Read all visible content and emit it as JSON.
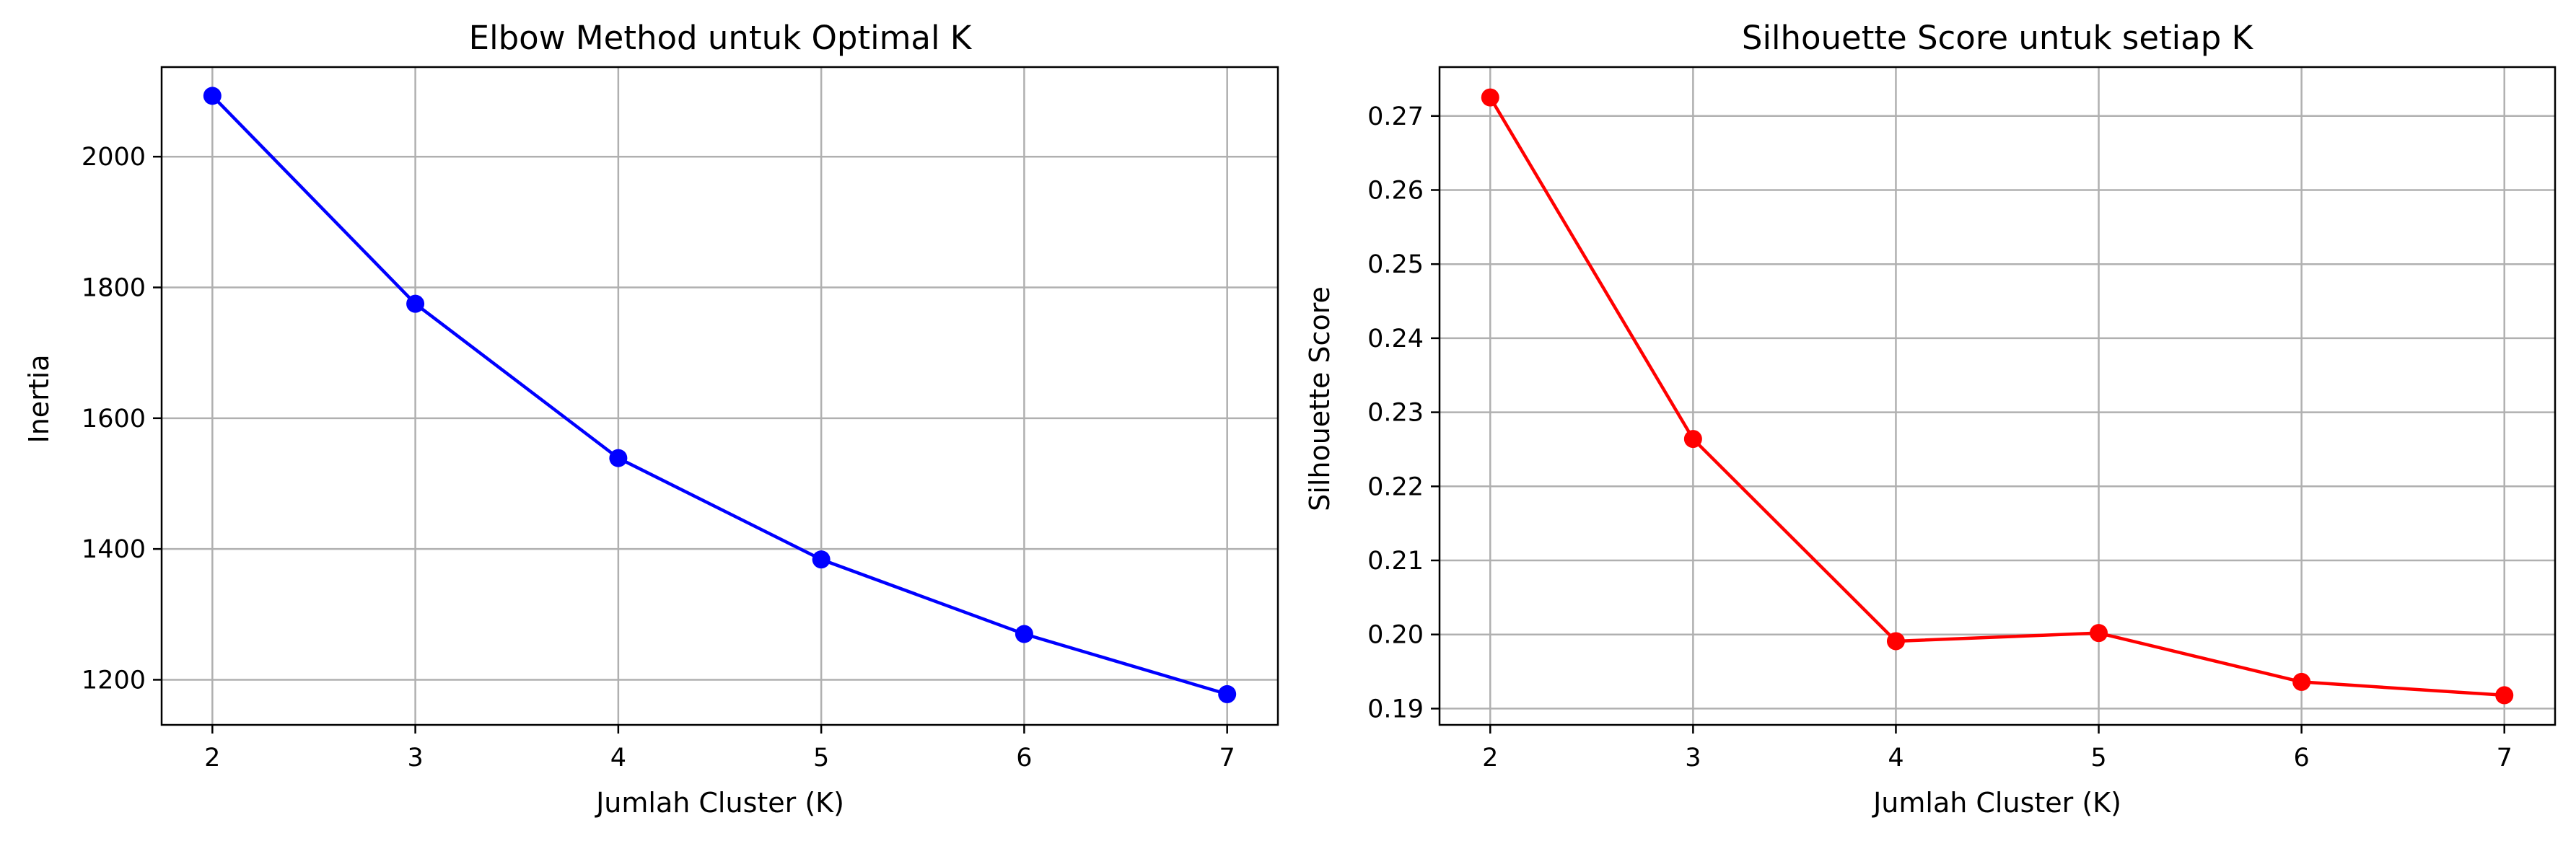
{
  "chart_data": [
    {
      "type": "line",
      "title": "Elbow Method untuk Optimal K",
      "xlabel": "Jumlah Cluster (K)",
      "ylabel": "Inertia",
      "x": [
        2,
        3,
        4,
        5,
        6,
        7
      ],
      "xticks": [
        2,
        3,
        4,
        5,
        6,
        7
      ],
      "yticks": [
        1200,
        1400,
        1600,
        1800,
        2000
      ],
      "xlim": [
        1.75,
        7.25
      ],
      "ylim": [
        1131,
        2137
      ],
      "grid": true,
      "marker": "circle",
      "series": [
        {
          "values": [
            2093,
            1775,
            1539,
            1384,
            1270,
            1178
          ],
          "color": "#0000ff"
        }
      ]
    },
    {
      "type": "line",
      "title": "Silhouette Score untuk setiap K",
      "xlabel": "Jumlah Cluster (K)",
      "ylabel": "Silhouette Score",
      "x": [
        2,
        3,
        4,
        5,
        6,
        7
      ],
      "xticks": [
        2,
        3,
        4,
        5,
        6,
        7
      ],
      "yticks": [
        0.19,
        0.2,
        0.21,
        0.22,
        0.23,
        0.24,
        0.25,
        0.26,
        0.27
      ],
      "xlim": [
        1.75,
        7.25
      ],
      "ylim": [
        0.1878,
        0.2766
      ],
      "grid": true,
      "marker": "circle",
      "series": [
        {
          "values": [
            0.2725,
            0.2264,
            0.1991,
            0.2002,
            0.1936,
            0.1918
          ],
          "color": "#ff0000"
        }
      ]
    }
  ],
  "style": {
    "grid_color": "#b0b0b0",
    "axis_color": "#000000"
  }
}
